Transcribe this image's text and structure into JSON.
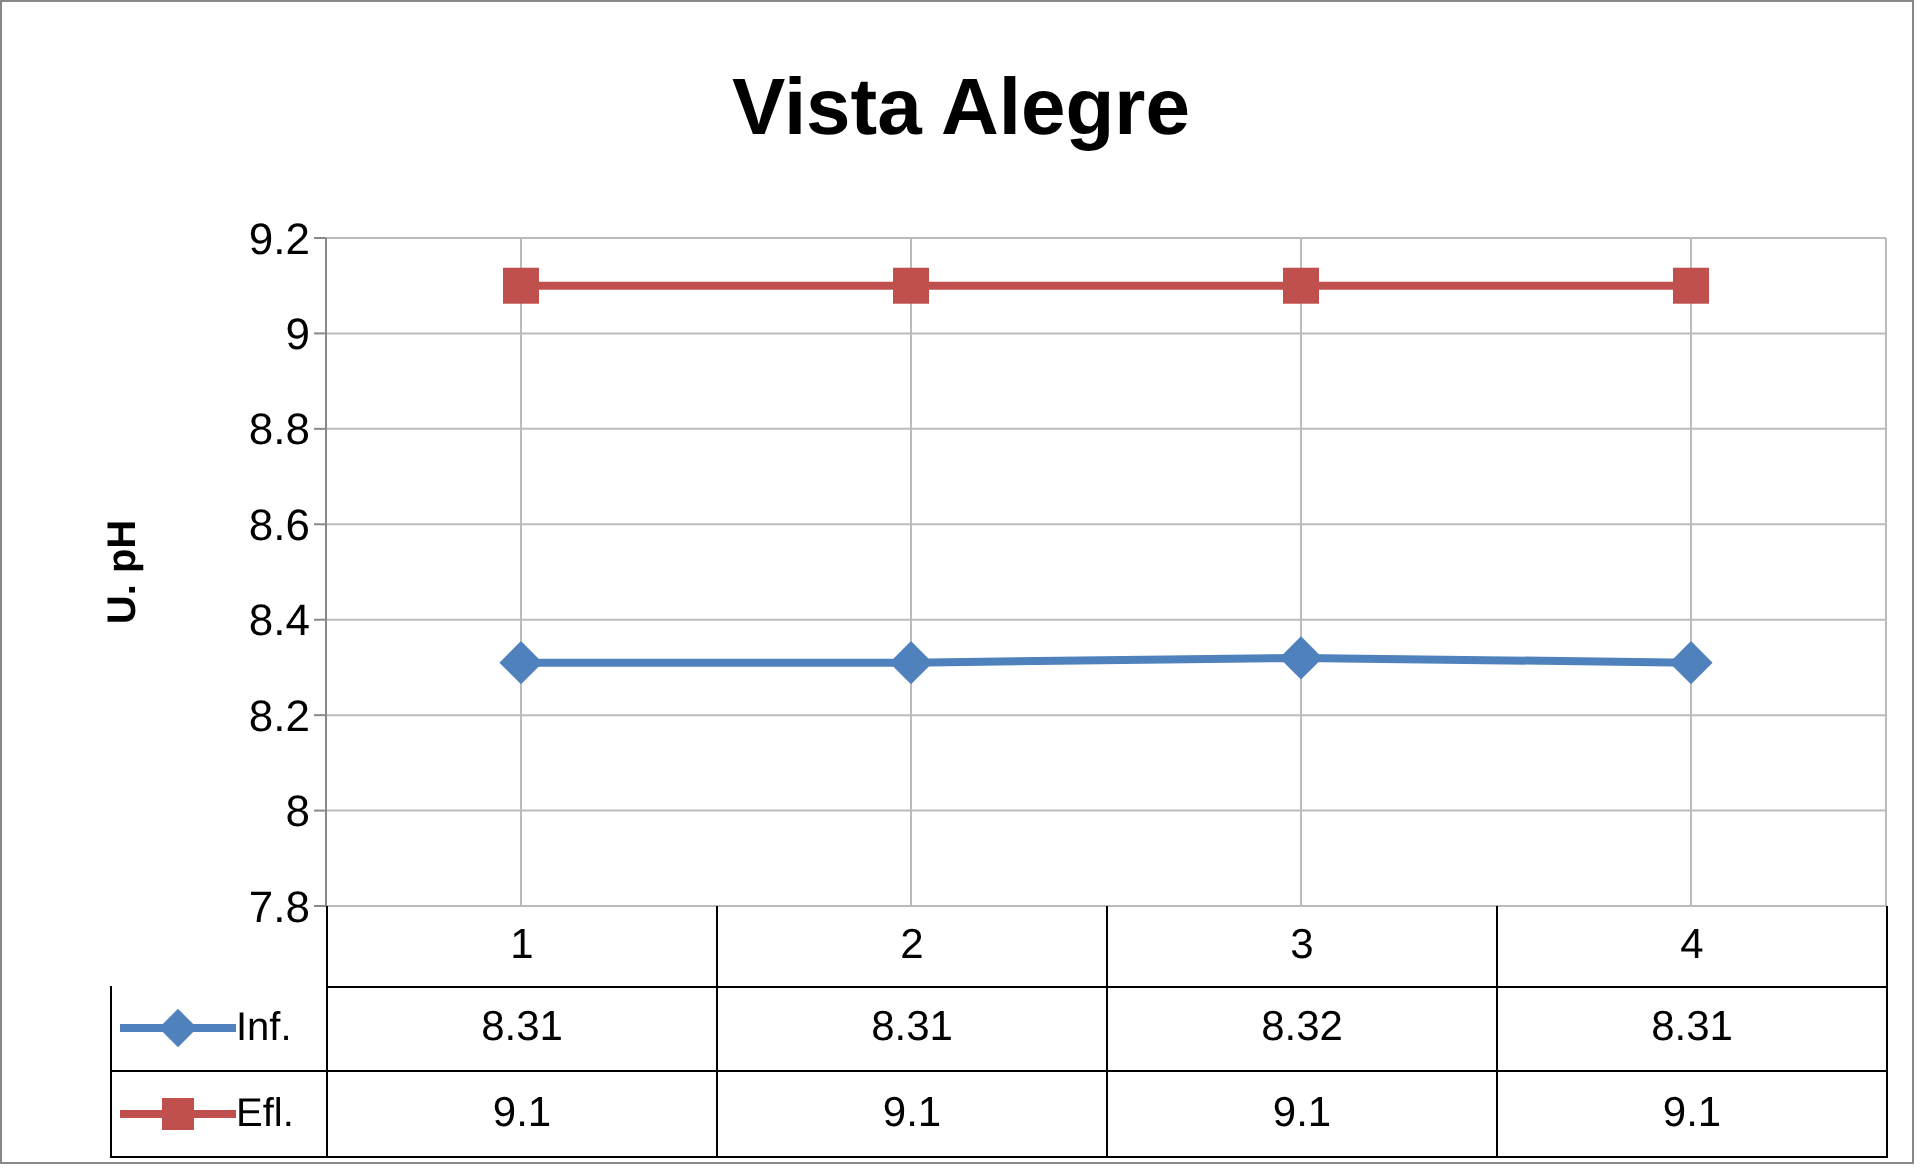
{
  "chart_data": {
    "type": "line",
    "title": "Vista Alegre",
    "ylabel": "U. pH",
    "categories": [
      "1",
      "2",
      "3",
      "4"
    ],
    "series": [
      {
        "name": "Inf.",
        "color": "#4f81bd",
        "values": [
          8.31,
          8.31,
          8.32,
          8.31
        ],
        "marker": "diamond"
      },
      {
        "name": "Efl.",
        "color": "#c0504d",
        "values": [
          9.1,
          9.1,
          9.1,
          9.1
        ],
        "marker": "square"
      }
    ],
    "ylim": [
      7.8,
      9.2
    ],
    "yticks": [
      7.8,
      8,
      8.2,
      8.4,
      8.6,
      8.8,
      9,
      9.2
    ],
    "grid": true,
    "legend": "bottom",
    "data_labels": true
  }
}
